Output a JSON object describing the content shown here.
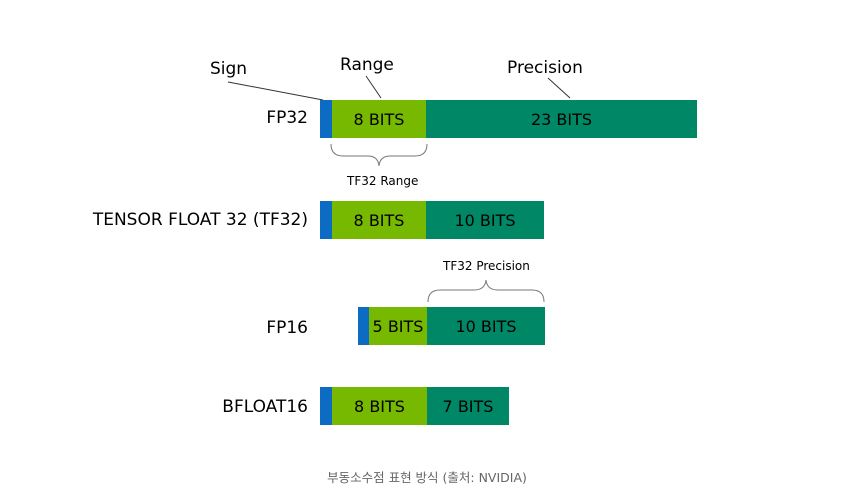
{
  "headers": {
    "sign": "Sign",
    "range": "Range",
    "precision": "Precision"
  },
  "rows": [
    {
      "label": "FP32",
      "range_bits": "8 BITS",
      "precision_bits": "23 BITS"
    },
    {
      "label": "TENSOR FLOAT 32 (TF32)",
      "range_bits": "8 BITS",
      "precision_bits": "10 BITS"
    },
    {
      "label": "FP16",
      "range_bits": "5 BITS",
      "precision_bits": "10 BITS"
    },
    {
      "label": "BFLOAT16",
      "range_bits": "8 BITS",
      "precision_bits": "7 BITS"
    }
  ],
  "annotations": {
    "tf32_range": "TF32 Range",
    "tf32_precision": "TF32 Precision"
  },
  "caption": "부동소수점 표현 방식 (출처: NVIDIA)",
  "colors": {
    "sign": "#0c6cc4",
    "range": "#76b900",
    "precision": "#008766"
  }
}
